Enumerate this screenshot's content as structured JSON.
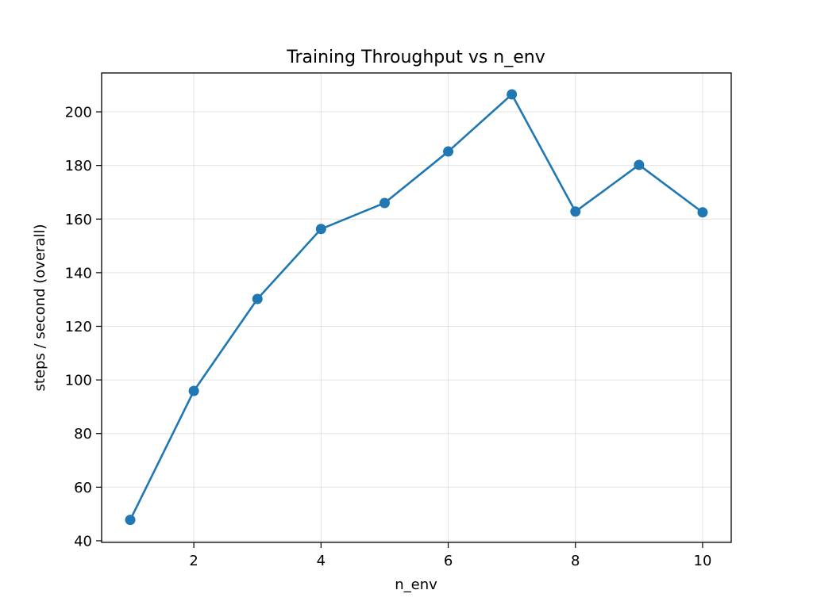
{
  "chart_data": {
    "type": "line",
    "title": "Training Throughput vs n_env",
    "xlabel": "n_env",
    "ylabel": "steps / second (overall)",
    "x": [
      1,
      2,
      3,
      4,
      5,
      6,
      7,
      8,
      9,
      10
    ],
    "series": [
      {
        "values": [
          47.8,
          95.9,
          130.2,
          156.3,
          166.0,
          185.2,
          206.5,
          162.8,
          180.2,
          162.5
        ],
        "color": "#1f77b4",
        "marker": "circle"
      }
    ],
    "xlim": [
      0.55,
      10.45
    ],
    "ylim": [
      39.4,
      214.5
    ],
    "xticks": [
      2,
      4,
      6,
      8,
      10
    ],
    "yticks": [
      40,
      60,
      80,
      100,
      120,
      140,
      160,
      180,
      200
    ],
    "grid": true
  }
}
